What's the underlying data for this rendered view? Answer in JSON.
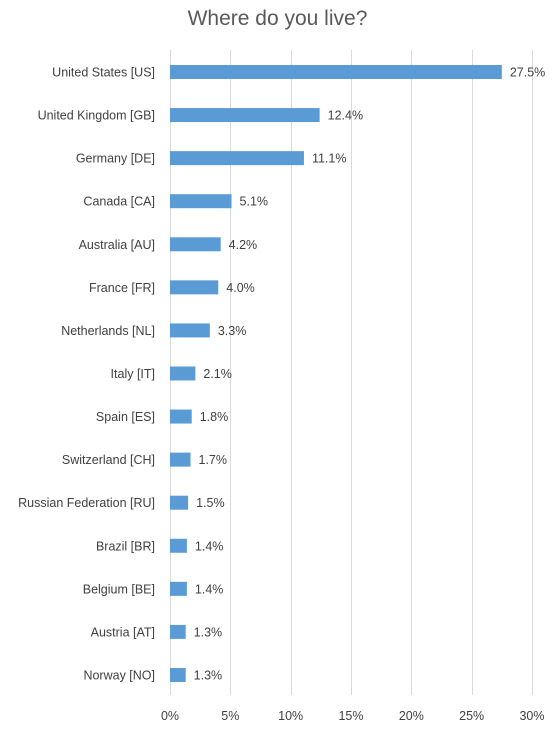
{
  "chart_data": {
    "type": "bar",
    "orientation": "horizontal",
    "title": "Where do you live?",
    "xlabel": "",
    "ylabel": "",
    "categories": [
      "United States [US]",
      "United Kingdom [GB]",
      "Germany [DE]",
      "Canada [CA]",
      "Australia [AU]",
      "France [FR]",
      "Netherlands [NL]",
      "Italy [IT]",
      "Spain [ES]",
      "Switzerland [CH]",
      "Russian Federation [RU]",
      "Brazil [BR]",
      "Belgium [BE]",
      "Austria [AT]",
      "Norway [NO]"
    ],
    "values": [
      27.5,
      12.4,
      11.1,
      5.1,
      4.2,
      4.0,
      3.3,
      2.1,
      1.8,
      1.7,
      1.5,
      1.4,
      1.4,
      1.3,
      1.3
    ],
    "data_labels": [
      "27.5%",
      "12.4%",
      "11.1%",
      "5.1%",
      "4.2%",
      "4.0%",
      "3.3%",
      "2.1%",
      "1.8%",
      "1.7%",
      "1.5%",
      "1.4%",
      "1.4%",
      "1.3%",
      "1.3%"
    ],
    "xlim": [
      0,
      30
    ],
    "x_ticks": [
      0,
      5,
      10,
      15,
      20,
      25,
      30
    ],
    "x_tick_labels": [
      "0%",
      "5%",
      "10%",
      "15%",
      "20%",
      "25%",
      "30%"
    ],
    "grid": true,
    "legend": "none",
    "bar_color": "#5b9bd5"
  }
}
